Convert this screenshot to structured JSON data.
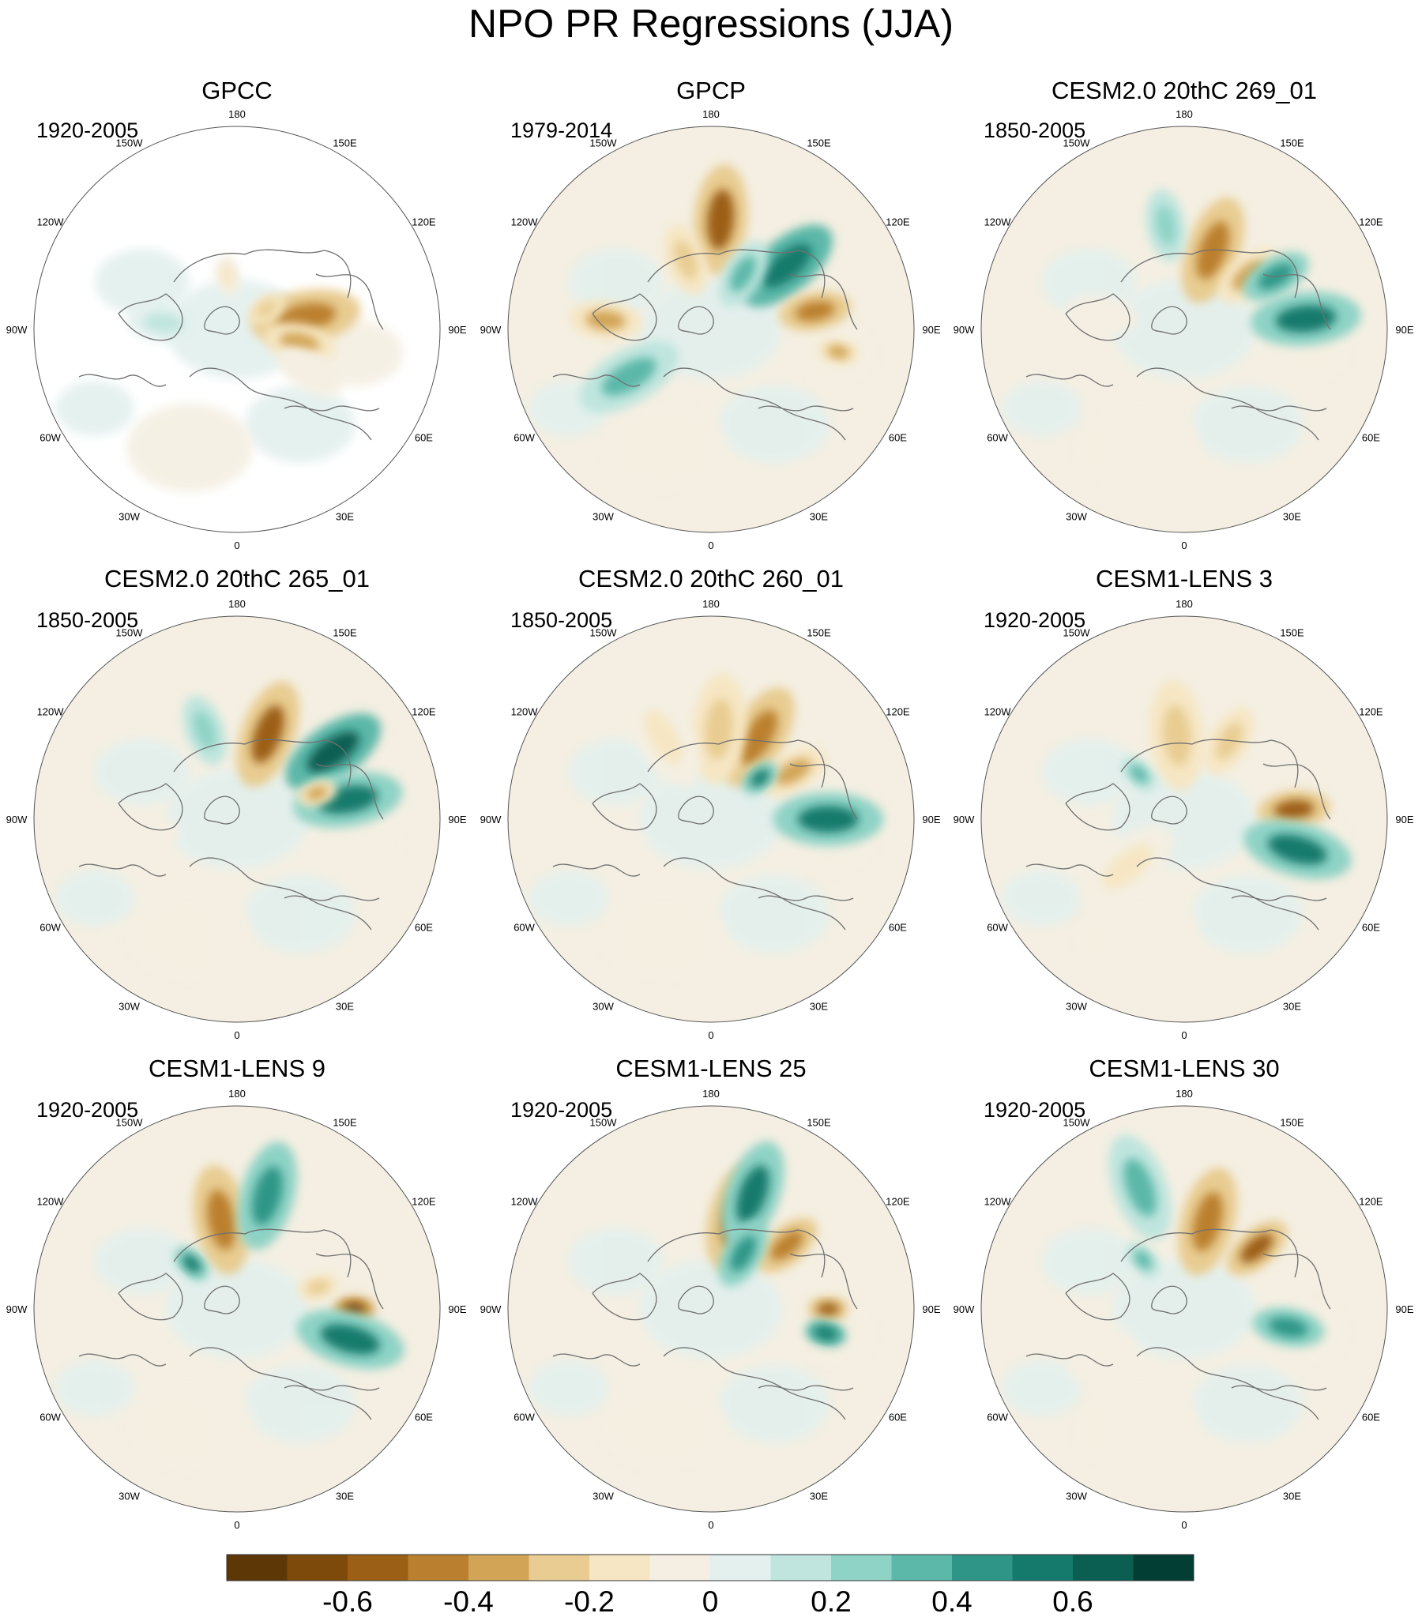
{
  "title": "NPO PR Regressions (JJA)",
  "longitude_labels": [
    "180",
    "150E",
    "120E",
    "90E",
    "60E",
    "30E",
    "0",
    "30W",
    "60W",
    "90W",
    "120W",
    "150W"
  ],
  "colors": {
    "scale": [
      "#5e3707",
      "#7d4a0c",
      "#9c5f16",
      "#bb802f",
      "#d2a455",
      "#e8cc91",
      "#f6e6c3",
      "#f4efe2",
      "#e3f0ee",
      "#bfe5de",
      "#8ed3c6",
      "#5cb8a9",
      "#2f9687",
      "#157a6c",
      "#0a5f52",
      "#023e33"
    ],
    "coast": "#707070",
    "rim": "#555555"
  },
  "chart_data": [
    {
      "type": "heatmap",
      "title": "GPCC",
      "period": "1920-2005",
      "projection": "north-polar-stereographic",
      "features": [
        {
          "lon": 100,
          "lat": 52,
          "value": -0.45,
          "size": "large"
        },
        {
          "lon": 78,
          "lat": 55,
          "value": -0.35,
          "size": "medium"
        },
        {
          "lon": 125,
          "lat": 70,
          "value": -0.25,
          "size": "small"
        },
        {
          "lon": -170,
          "lat": 60,
          "value": -0.2,
          "size": "small"
        },
        {
          "lon": 60,
          "lat": 45,
          "value": -0.1,
          "size": "medium"
        },
        {
          "lon": -95,
          "lat": 50,
          "value": 0.1,
          "size": "medium"
        }
      ]
    },
    {
      "type": "heatmap",
      "title": "GPCP",
      "period": "1979-2014",
      "projection": "north-polar-stereographic",
      "features": [
        {
          "lon": 175,
          "lat": 33,
          "value": -0.55,
          "size": "large"
        },
        {
          "lon": 130,
          "lat": 38,
          "value": 0.6,
          "size": "large"
        },
        {
          "lon": 100,
          "lat": 35,
          "value": -0.45,
          "size": "medium"
        },
        {
          "lon": -95,
          "lat": 35,
          "value": -0.4,
          "size": "medium"
        },
        {
          "lon": -60,
          "lat": 40,
          "value": 0.35,
          "size": "large"
        },
        {
          "lon": 80,
          "lat": 25,
          "value": -0.35,
          "size": "small"
        },
        {
          "lon": 150,
          "lat": 55,
          "value": 0.3,
          "size": "medium"
        },
        {
          "lon": -160,
          "lat": 50,
          "value": -0.25,
          "size": "medium"
        }
      ]
    },
    {
      "type": "heatmap",
      "title": "CESM2.0 20thC 269_01",
      "period": "1850-2005",
      "projection": "north-polar-stereographic",
      "features": [
        {
          "lon": 160,
          "lat": 45,
          "value": -0.45,
          "size": "large"
        },
        {
          "lon": 130,
          "lat": 45,
          "value": -0.4,
          "size": "medium"
        },
        {
          "lon": 95,
          "lat": 28,
          "value": 0.55,
          "size": "large"
        },
        {
          "lon": 120,
          "lat": 35,
          "value": 0.4,
          "size": "medium"
        },
        {
          "lon": -170,
          "lat": 35,
          "value": 0.25,
          "size": "medium"
        },
        {
          "lon": -100,
          "lat": 45,
          "value": -0.1,
          "size": "medium"
        }
      ]
    },
    {
      "type": "heatmap",
      "title": "CESM2.0 20thC 265_01",
      "period": "1850-2005",
      "projection": "north-polar-stereographic",
      "features": [
        {
          "lon": 160,
          "lat": 42,
          "value": -0.55,
          "size": "large"
        },
        {
          "lon": 125,
          "lat": 30,
          "value": 0.65,
          "size": "large"
        },
        {
          "lon": 100,
          "lat": 32,
          "value": 0.5,
          "size": "large"
        },
        {
          "lon": 108,
          "lat": 45,
          "value": -0.35,
          "size": "small"
        },
        {
          "lon": -160,
          "lat": 40,
          "value": 0.2,
          "size": "medium"
        },
        {
          "lon": -80,
          "lat": 40,
          "value": -0.1,
          "size": "medium"
        }
      ]
    },
    {
      "type": "heatmap",
      "title": "CESM2.0 20thC 260_01",
      "period": "1850-2005",
      "projection": "north-polar-stereographic",
      "features": [
        {
          "lon": 150,
          "lat": 40,
          "value": -0.5,
          "size": "large"
        },
        {
          "lon": 175,
          "lat": 42,
          "value": -0.3,
          "size": "large"
        },
        {
          "lon": 120,
          "lat": 40,
          "value": -0.4,
          "size": "medium"
        },
        {
          "lon": 90,
          "lat": 30,
          "value": 0.55,
          "size": "large"
        },
        {
          "lon": 130,
          "lat": 55,
          "value": 0.5,
          "size": "small"
        },
        {
          "lon": -150,
          "lat": 40,
          "value": -0.15,
          "size": "large"
        }
      ]
    },
    {
      "type": "heatmap",
      "title": "CESM1-LENS 3",
      "period": "1920-2005",
      "projection": "north-polar-stereographic",
      "features": [
        {
          "lon": -175,
          "lat": 45,
          "value": -0.25,
          "size": "large"
        },
        {
          "lon": 150,
          "lat": 42,
          "value": -0.3,
          "size": "medium"
        },
        {
          "lon": 95,
          "lat": 33,
          "value": -0.6,
          "size": "medium"
        },
        {
          "lon": 75,
          "lat": 30,
          "value": 0.5,
          "size": "large"
        },
        {
          "lon": -135,
          "lat": 55,
          "value": 0.35,
          "size": "small"
        },
        {
          "lon": -50,
          "lat": 50,
          "value": -0.15,
          "size": "large"
        }
      ]
    },
    {
      "type": "heatmap",
      "title": "CESM1-LENS 9",
      "period": "1920-2005",
      "projection": "north-polar-stereographic",
      "features": [
        {
          "lon": -170,
          "lat": 42,
          "value": -0.45,
          "size": "large"
        },
        {
          "lon": 165,
          "lat": 30,
          "value": 0.4,
          "size": "large"
        },
        {
          "lon": 90,
          "lat": 30,
          "value": -0.65,
          "size": "small"
        },
        {
          "lon": 75,
          "lat": 30,
          "value": 0.5,
          "size": "large"
        },
        {
          "lon": -135,
          "lat": 55,
          "value": 0.5,
          "size": "small"
        },
        {
          "lon": 105,
          "lat": 45,
          "value": -0.3,
          "size": "small"
        }
      ]
    },
    {
      "type": "heatmap",
      "title": "CESM1-LENS 25",
      "period": "1920-2005",
      "projection": "north-polar-stereographic",
      "features": [
        {
          "lon": 165,
          "lat": 40,
          "value": -0.5,
          "size": "large"
        },
        {
          "lon": 130,
          "lat": 38,
          "value": -0.5,
          "size": "medium"
        },
        {
          "lon": 160,
          "lat": 28,
          "value": 0.55,
          "size": "large"
        },
        {
          "lon": 150,
          "lat": 55,
          "value": 0.45,
          "size": "medium"
        },
        {
          "lon": 90,
          "lat": 30,
          "value": -0.6,
          "size": "small"
        },
        {
          "lon": 78,
          "lat": 30,
          "value": 0.6,
          "size": "small"
        }
      ]
    },
    {
      "type": "heatmap",
      "title": "CESM1-LENS 30",
      "period": "1920-2005",
      "projection": "north-polar-stereographic",
      "features": [
        {
          "lon": 165,
          "lat": 42,
          "value": -0.45,
          "size": "large"
        },
        {
          "lon": 130,
          "lat": 40,
          "value": -0.55,
          "size": "medium"
        },
        {
          "lon": 80,
          "lat": 35,
          "value": 0.45,
          "size": "medium"
        },
        {
          "lon": -140,
          "lat": 55,
          "value": 0.35,
          "size": "small"
        },
        {
          "lon": -160,
          "lat": 25,
          "value": 0.3,
          "size": "large"
        },
        {
          "lon": -60,
          "lat": 40,
          "value": -0.1,
          "size": "medium"
        }
      ]
    }
  ],
  "colorbar": {
    "tick_values": [
      "-0.6",
      "-0.4",
      "-0.2",
      "0",
      "0.2",
      "0.4",
      "0.6"
    ]
  }
}
